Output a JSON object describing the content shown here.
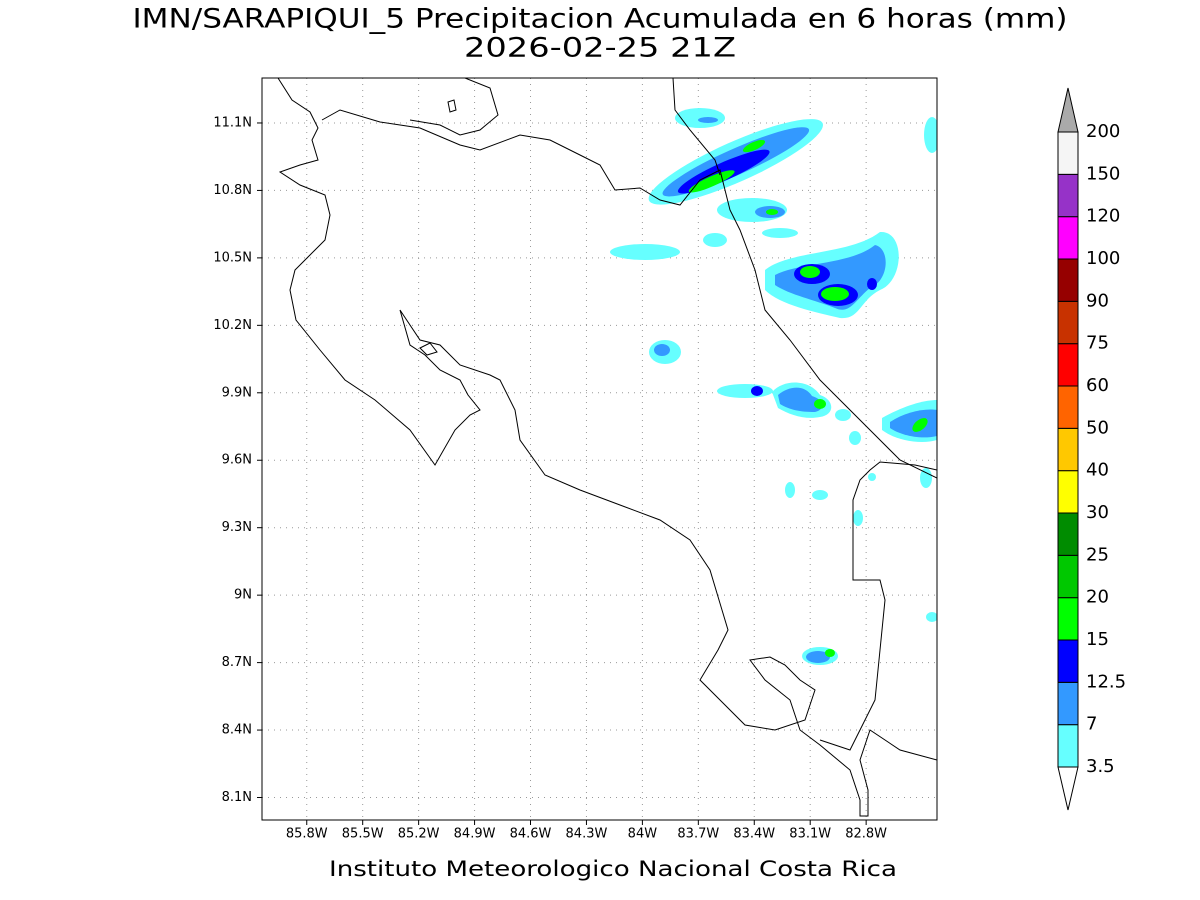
{
  "title": "IMN/SARAPIQUI_5 Precipitacion Acumulada en 6 horas (mm)",
  "subtitle": "2026-02-25 21Z",
  "footer": "Instituto Meteorologico Nacional Costa Rica",
  "map": {
    "lonlim": [
      -86.04,
      -82.42
    ],
    "latlim": [
      8.0,
      11.3
    ],
    "grid": true,
    "lon_ticks": [
      {
        "value": -85.8,
        "label": "85.8W"
      },
      {
        "value": -85.5,
        "label": "85.5W"
      },
      {
        "value": -85.2,
        "label": "85.2W"
      },
      {
        "value": -84.9,
        "label": "84.9W"
      },
      {
        "value": -84.6,
        "label": "84.6W"
      },
      {
        "value": -84.3,
        "label": "84.3W"
      },
      {
        "value": -84,
        "label": "84W"
      },
      {
        "value": -83.7,
        "label": "83.7W"
      },
      {
        "value": -83.4,
        "label": "83.4W"
      },
      {
        "value": -83.1,
        "label": "83.1W"
      },
      {
        "value": -82.8,
        "label": "82.8W"
      }
    ],
    "lat_ticks": [
      {
        "value": 8.1,
        "label": "8.1N"
      },
      {
        "value": 8.4,
        "label": "8.4N"
      },
      {
        "value": 8.7,
        "label": "8.7N"
      },
      {
        "value": 9,
        "label": "9N"
      },
      {
        "value": 9.3,
        "label": "9.3N"
      },
      {
        "value": 9.6,
        "label": "9.6N"
      },
      {
        "value": 9.9,
        "label": "9.9N"
      },
      {
        "value": 10.2,
        "label": "10.2N"
      },
      {
        "value": 10.5,
        "label": "10.5N"
      },
      {
        "value": 10.8,
        "label": "10.8N"
      },
      {
        "value": 11.1,
        "label": "11.1N"
      }
    ]
  },
  "colorbar": {
    "levels": [
      3.5,
      7,
      12.5,
      15,
      20,
      25,
      30,
      40,
      50,
      60,
      75,
      90,
      100,
      120,
      150,
      200
    ],
    "colors": [
      "#ffffff",
      "#66ffff",
      "#3399ff",
      "#0000ff",
      "#00ff00",
      "#00c800",
      "#008c00",
      "#ffff00",
      "#ffc800",
      "#ff6400",
      "#ff0000",
      "#c83200",
      "#960000",
      "#ff00ff",
      "#9632c8",
      "#f5f5f5",
      "#aaaaaa"
    ]
  }
}
